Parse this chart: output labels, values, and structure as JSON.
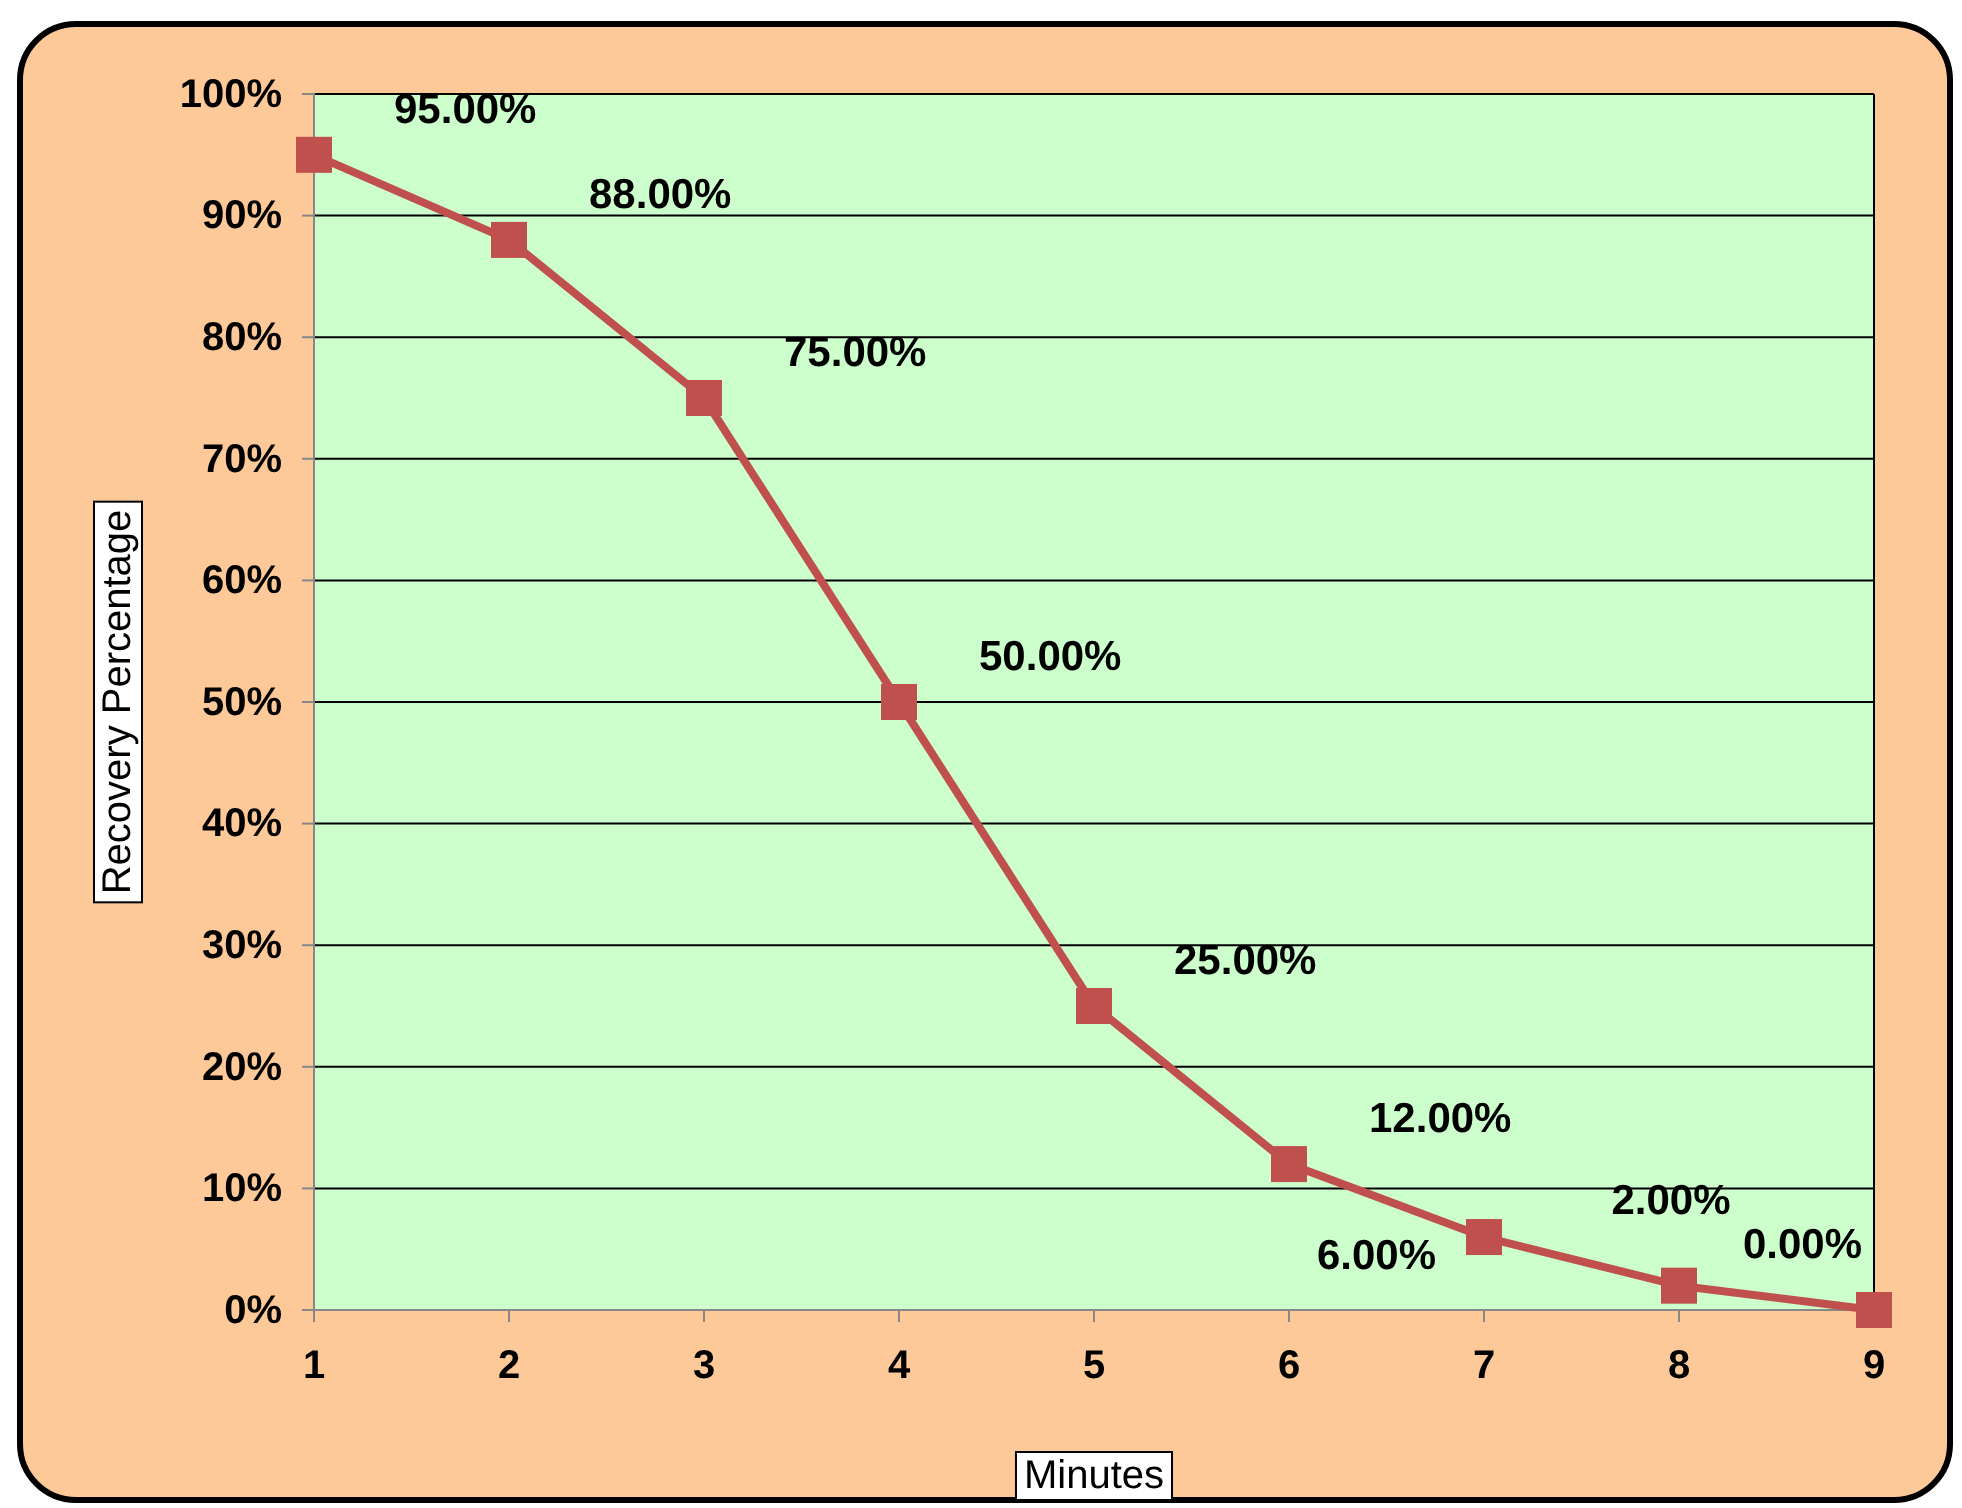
{
  "chart_data": {
    "type": "line",
    "xlabel": "Minutes",
    "ylabel": "Recovery Percentage",
    "x": [
      1,
      2,
      3,
      4,
      5,
      6,
      7,
      8,
      9
    ],
    "series": [
      {
        "color": "#c0504d",
        "values": [
          95,
          88,
          75,
          50,
          25,
          12,
          6,
          2,
          0
        ],
        "value_labels": [
          "95.00%",
          "88.00%",
          "75.00%",
          "50.00%",
          "25.00%",
          "12.00%",
          "6.00%",
          "2.00%",
          "0.00%"
        ]
      }
    ],
    "xlim": [
      1,
      9
    ],
    "xticks": [
      1,
      2,
      3,
      4,
      5,
      6,
      7,
      8,
      9
    ],
    "ylim": [
      0,
      100
    ],
    "yticks": [
      {
        "value": 0,
        "label": "0%"
      },
      {
        "value": 10,
        "label": "10%"
      },
      {
        "value": 20,
        "label": "20%"
      },
      {
        "value": 30,
        "label": "30%"
      },
      {
        "value": 40,
        "label": "40%"
      },
      {
        "value": 50,
        "label": "50%"
      },
      {
        "value": 60,
        "label": "60%"
      },
      {
        "value": 70,
        "label": "70%"
      },
      {
        "value": 80,
        "label": "80%"
      },
      {
        "value": 90,
        "label": "90%"
      },
      {
        "value": 100,
        "label": "100%"
      }
    ],
    "grid": "y",
    "marker": "square",
    "line_style": "solid"
  }
}
